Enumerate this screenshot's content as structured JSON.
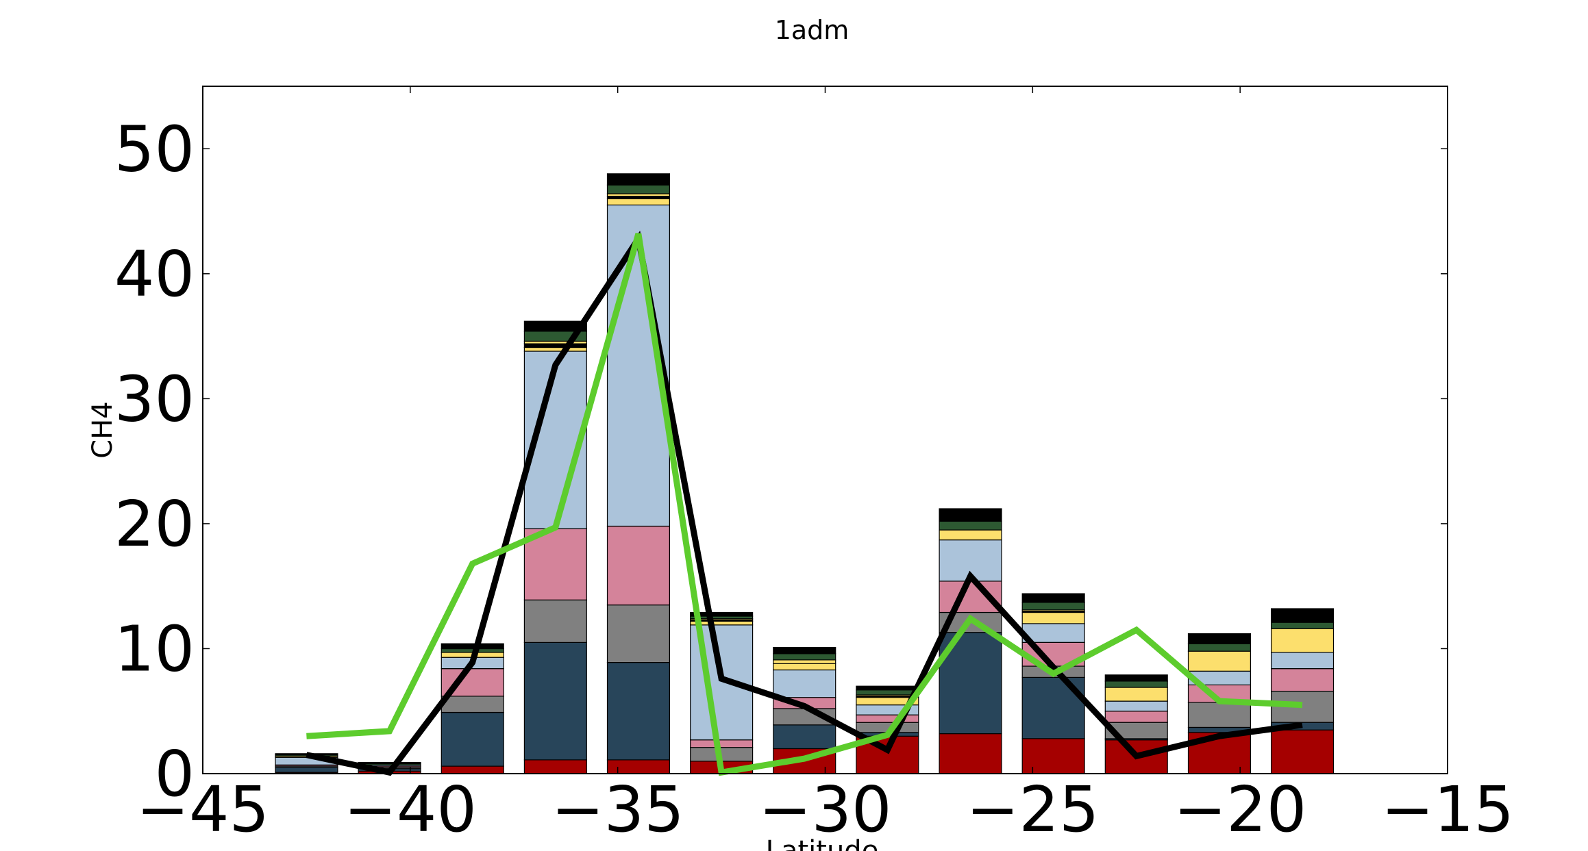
{
  "chart_data": {
    "type": "bar",
    "stacked": true,
    "title": "1adm",
    "xlabel": "Latitude",
    "ylabel": "CH4",
    "xlim": [
      -45,
      -15
    ],
    "ylim": [
      0,
      55
    ],
    "xticks": [
      -45,
      -40,
      -35,
      -30,
      -25,
      -20,
      -15
    ],
    "yticks": [
      0,
      10,
      20,
      30,
      40,
      50
    ],
    "xtick_labels": [
      "−45",
      "−40",
      "−35",
      "−30",
      "−25",
      "−20",
      "−15"
    ],
    "ytick_labels": [
      "0",
      "10",
      "20",
      "30",
      "40",
      "50"
    ],
    "grid": false,
    "bar_width": 1.5,
    "x": [
      -42.5,
      -40.5,
      -38.5,
      -36.5,
      -34.5,
      -32.5,
      -30.5,
      -28.5,
      -26.5,
      -24.5,
      -22.5,
      -20.5,
      -18.5
    ],
    "stack_series": [
      {
        "color": "#a50000",
        "values": [
          0.1,
          0.2,
          0.6,
          1.1,
          1.1,
          1.0,
          2.0,
          3.0,
          3.2,
          2.8,
          2.7,
          3.3,
          3.5
        ]
      },
      {
        "color": "#28455a",
        "values": [
          0.4,
          0.2,
          4.3,
          9.4,
          7.8,
          0.0,
          1.9,
          0.3,
          8.1,
          4.9,
          0.1,
          0.4,
          0.6
        ]
      },
      {
        "color": "#808080",
        "values": [
          0.1,
          0.1,
          1.3,
          3.4,
          4.6,
          1.1,
          1.3,
          0.8,
          1.6,
          0.9,
          1.3,
          2.0,
          2.5
        ]
      },
      {
        "color": "#d4839a",
        "values": [
          0.1,
          0.1,
          2.2,
          5.7,
          6.3,
          0.6,
          0.9,
          0.6,
          2.5,
          1.9,
          0.9,
          1.4,
          1.8
        ]
      },
      {
        "color": "#abc3da",
        "values": [
          0.6,
          0.1,
          0.9,
          14.2,
          25.7,
          9.2,
          2.2,
          0.8,
          3.3,
          1.5,
          0.8,
          1.1,
          1.3
        ]
      },
      {
        "color": "#fcdf6d",
        "values": [
          0.1,
          0.0,
          0.4,
          0.3,
          0.5,
          0.3,
          0.5,
          0.6,
          0.8,
          0.9,
          1.1,
          1.6,
          1.9
        ]
      },
      {
        "color": "#000000",
        "values": [
          0.0,
          0.0,
          0.0,
          0.3,
          0.2,
          0.1,
          0.0,
          0.1,
          0.0,
          0.1,
          0.0,
          0.0,
          0.0
        ]
      },
      {
        "color": "#fcdf6d",
        "values": [
          0.0,
          0.0,
          0.0,
          0.2,
          0.2,
          0.1,
          0.3,
          0.1,
          0.0,
          0.1,
          0.0,
          0.0,
          0.0
        ]
      },
      {
        "color": "#2d5932",
        "values": [
          0.1,
          0.1,
          0.3,
          0.8,
          0.7,
          0.2,
          0.5,
          0.4,
          0.7,
          0.6,
          0.5,
          0.6,
          0.5
        ]
      },
      {
        "color": "#000000",
        "values": [
          0.1,
          0.1,
          0.4,
          0.8,
          0.9,
          0.3,
          0.5,
          0.3,
          1.0,
          0.7,
          0.5,
          0.8,
          1.1
        ]
      }
    ],
    "lines": [
      {
        "color": "#000000",
        "width": 9,
        "x": [
          -42.5,
          -40.5,
          -38.5,
          -36.5,
          -34.5,
          -32.5,
          -30.5,
          -28.5,
          -26.5,
          -24.5,
          -22.5,
          -20.5,
          -18.5
        ],
        "y": [
          1.5,
          0.1,
          8.9,
          32.7,
          42.8,
          7.6,
          5.4,
          1.9,
          15.8,
          8.5,
          1.4,
          3.0,
          3.9
        ]
      },
      {
        "color": "#5dcc2d",
        "width": 9,
        "x": [
          -42.5,
          -40.5,
          -38.5,
          -36.5,
          -34.5,
          -32.5,
          -30.5,
          -28.5,
          -26.5,
          -24.5,
          -22.5,
          -20.5,
          -18.5
        ],
        "y": [
          3.0,
          3.4,
          16.8,
          19.7,
          43.2,
          0.1,
          1.2,
          3.1,
          12.4,
          8.0,
          11.5,
          5.8,
          5.5
        ]
      }
    ]
  }
}
